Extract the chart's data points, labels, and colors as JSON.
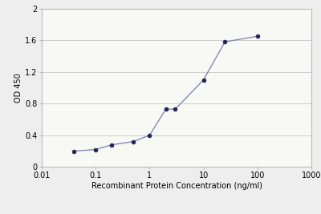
{
  "x_values": [
    0.04,
    0.1,
    0.2,
    0.5,
    1.0,
    2.0,
    3.0,
    10.0,
    25.0,
    100.0
  ],
  "y_values": [
    0.2,
    0.22,
    0.28,
    0.32,
    0.4,
    0.73,
    0.73,
    1.1,
    1.58,
    1.65
  ],
  "line_color": "#8888bb",
  "marker_color": "#222255",
  "marker_size": 3.5,
  "line_width": 1.0,
  "xlabel": "Recombinant Protein Concentration (ng/ml)",
  "ylabel": "OD 450",
  "xlim": [
    0.01,
    1000
  ],
  "ylim": [
    0,
    2
  ],
  "yticks": [
    0,
    0.4,
    0.8,
    1.2,
    1.6,
    2.0
  ],
  "xtick_labels": [
    "0.01",
    "0.1",
    "1",
    "10",
    "100",
    "1000"
  ],
  "xtick_values": [
    0.01,
    0.1,
    1,
    10,
    100,
    1000
  ],
  "background_color": "#eeeeee",
  "plot_bg_color": "#f8f8f4",
  "grid_color": "#cccccc",
  "xlabel_fontsize": 7,
  "ylabel_fontsize": 7,
  "tick_fontsize": 7
}
